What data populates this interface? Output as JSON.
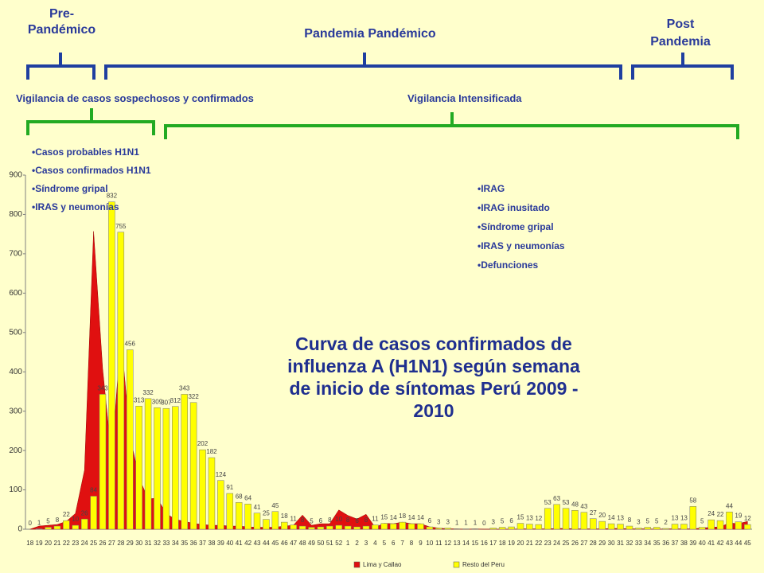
{
  "header": {
    "phases": [
      "Pre-\nPandémico",
      "Pandemia Pandémico",
      "Post\nPandemia"
    ],
    "surveillance": [
      "Vigilancia de casos sospechosos y confirmados",
      "Vigilancia Intensificada"
    ],
    "list1": [
      "•Casos probables H1N1",
      "•Casos confirmados H1N1",
      "•Síndrome gripal",
      "•IRAS y neumonías"
    ],
    "list2": [
      "•IRAG",
      "•IRAG inusitado",
      "•Síndrome gripal",
      "•IRAS y neumonías",
      "•Defunciones"
    ]
  },
  "chart_data": {
    "type": "bar",
    "title": "Curva de casos confirmados de influenza A (H1N1) según semana de inicio de síntomas Perú 2009 - 2010",
    "categories": [
      "18",
      "19",
      "20",
      "21",
      "22",
      "23",
      "24",
      "25",
      "26",
      "27",
      "28",
      "29",
      "30",
      "31",
      "32",
      "33",
      "34",
      "35",
      "36",
      "37",
      "38",
      "39",
      "40",
      "41",
      "42",
      "43",
      "44",
      "45",
      "46",
      "47",
      "48",
      "49",
      "50",
      "51",
      "52",
      "1",
      "2",
      "3",
      "4",
      "5",
      "6",
      "7",
      "8",
      "9",
      "10",
      "11",
      "12",
      "13",
      "14",
      "15",
      "16",
      "17",
      "18",
      "19",
      "20",
      "21",
      "22",
      "23",
      "24",
      "25",
      "26",
      "27",
      "28",
      "29",
      "30",
      "31",
      "32",
      "33",
      "34",
      "35",
      "36",
      "37",
      "38",
      "39",
      "40",
      "41",
      "42",
      "43",
      "44",
      "45"
    ],
    "series": [
      {
        "name": "Lima y Callao",
        "type": "area",
        "color": "#e01010",
        "values": [
          0,
          8,
          10,
          12,
          20,
          40,
          150,
          757,
          407,
          179,
          491,
          238,
          131,
          77,
          79,
          40,
          25,
          20,
          15,
          12,
          10,
          10,
          8,
          8,
          6,
          5,
          5,
          5,
          8,
          10,
          36,
          10,
          14,
          14,
          49,
          35,
          26,
          38,
          5,
          15,
          14,
          18,
          14,
          14,
          6,
          3,
          1,
          1,
          0,
          1,
          0,
          0,
          0,
          0,
          1,
          1,
          1,
          1,
          2,
          2,
          1,
          1,
          1,
          1,
          2,
          2,
          1,
          1,
          1,
          0,
          1,
          1,
          1,
          1,
          3,
          5,
          6,
          16,
          14,
          20
        ]
      },
      {
        "name": "Resto del Peru",
        "type": "bar",
        "color": "#ffff00",
        "values": [
          0,
          1,
          5,
          8,
          22,
          10,
          26,
          84,
          343,
          832,
          755,
          456,
          313,
          332,
          309,
          307,
          312,
          343,
          322,
          202,
          182,
          124,
          91,
          68,
          64,
          41,
          25,
          45,
          18,
          11,
          8,
          5,
          6,
          8,
          10,
          8,
          6,
          8,
          11,
          15,
          14,
          18,
          14,
          14,
          6,
          3,
          3,
          1,
          1,
          1,
          0,
          3,
          5,
          6,
          15,
          13,
          12,
          53,
          63,
          53,
          48,
          43,
          27,
          20,
          14,
          13,
          8,
          3,
          5,
          5,
          2,
          13,
          13,
          58,
          5,
          24,
          22,
          44,
          19,
          12
        ]
      }
    ],
    "ylim": [
      0,
      900
    ],
    "yticks": [
      0,
      100,
      200,
      300,
      400,
      500,
      600,
      700,
      800,
      900
    ]
  }
}
